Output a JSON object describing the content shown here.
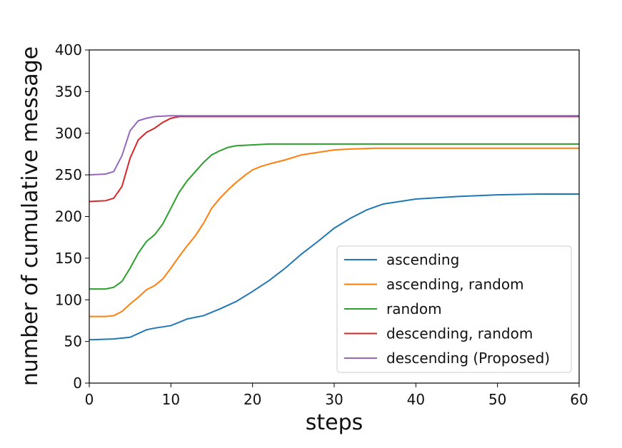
{
  "chart_data": {
    "type": "line",
    "title": "",
    "xlabel": "steps",
    "ylabel": "number of cumulative message",
    "xlim": [
      0,
      60
    ],
    "ylim": [
      0,
      400
    ],
    "xticks": [
      0,
      10,
      20,
      30,
      40,
      50,
      60
    ],
    "yticks": [
      0,
      50,
      100,
      150,
      200,
      250,
      300,
      350,
      400
    ],
    "grid": false,
    "legend_position": "lower-right",
    "series": [
      {
        "name": "ascending",
        "color": "#1f77b4",
        "x": [
          0,
          3,
          5,
          7,
          8,
          10,
          12,
          14,
          16,
          18,
          20,
          22,
          24,
          26,
          28,
          30,
          32,
          34,
          36,
          38,
          40,
          45,
          50,
          55,
          60
        ],
        "y": [
          52,
          53,
          55,
          64,
          66,
          69,
          77,
          81,
          89,
          98,
          110,
          123,
          138,
          155,
          170,
          186,
          198,
          208,
          215,
          218,
          221,
          224,
          226,
          227,
          227
        ]
      },
      {
        "name": "ascending, random",
        "color": "#ff7f0e",
        "x": [
          0,
          2,
          3,
          4,
          5,
          6,
          7,
          8,
          9,
          10,
          11,
          12,
          13,
          14,
          15,
          16,
          17,
          18,
          19,
          20,
          21,
          22,
          24,
          26,
          28,
          30,
          32,
          35,
          60
        ],
        "y": [
          80,
          80,
          81,
          86,
          95,
          103,
          112,
          117,
          125,
          138,
          152,
          165,
          177,
          192,
          210,
          222,
          232,
          241,
          249,
          256,
          260,
          263,
          268,
          274,
          277,
          280,
          281,
          282,
          282
        ]
      },
      {
        "name": "random",
        "color": "#2ca02c",
        "x": [
          0,
          2,
          3,
          4,
          5,
          6,
          7,
          8,
          9,
          10,
          11,
          12,
          13,
          14,
          15,
          16,
          17,
          18,
          20,
          22,
          60
        ],
        "y": [
          113,
          113,
          115,
          122,
          138,
          156,
          170,
          178,
          191,
          210,
          229,
          243,
          254,
          265,
          274,
          279,
          283,
          285,
          286,
          287,
          287
        ]
      },
      {
        "name": "descending, random",
        "color": "#d62728",
        "x": [
          0,
          2,
          3,
          4,
          5,
          6,
          7,
          8,
          9,
          10,
          11,
          12,
          60
        ],
        "y": [
          218,
          219,
          222,
          236,
          270,
          292,
          301,
          306,
          313,
          318,
          320,
          320,
          320
        ]
      },
      {
        "name": "descending (Proposed)",
        "color": "#9467bd",
        "x": [
          0,
          2,
          3,
          4,
          5,
          6,
          7,
          8,
          10,
          60
        ],
        "y": [
          250,
          251,
          254,
          273,
          303,
          315,
          318,
          320,
          321,
          321
        ]
      }
    ]
  }
}
